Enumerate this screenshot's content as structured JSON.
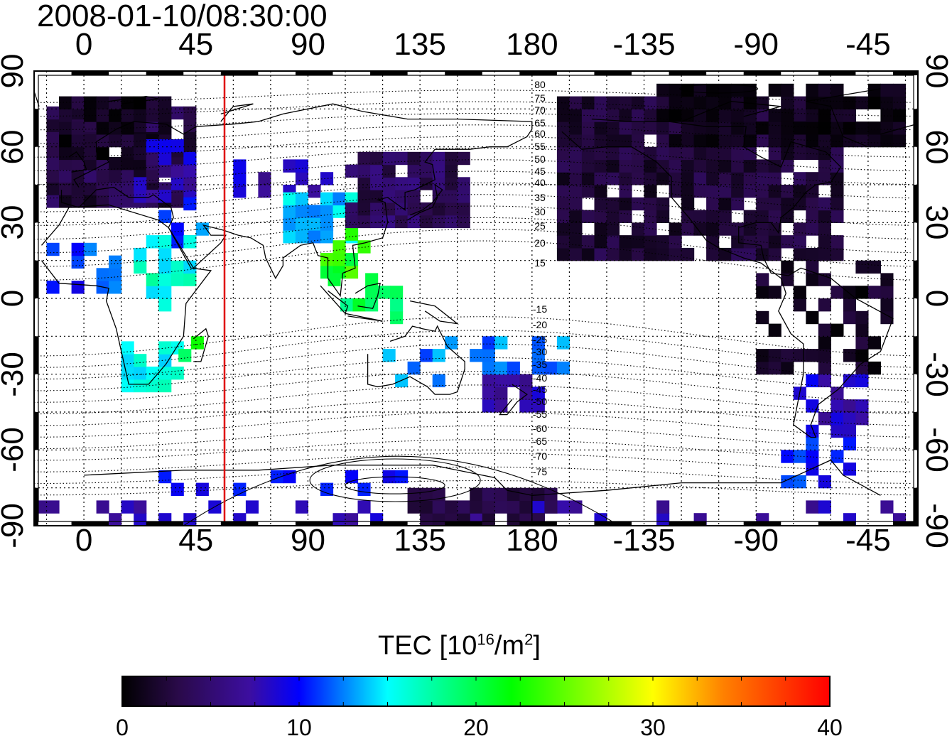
{
  "title": "2008-01-10/08:30:00",
  "map": {
    "lon_ticks_top": [
      "0",
      "45",
      "90",
      "135",
      "180",
      "-135",
      "-90",
      "-45"
    ],
    "lon_ticks_bottom": [
      "0",
      "45",
      "90",
      "135",
      "180",
      "-135",
      "-90",
      "-45"
    ],
    "lat_ticks_left": [
      "90",
      "60",
      "30",
      "0",
      "-30",
      "-60",
      "-90"
    ],
    "lat_ticks_right": [
      "90",
      "60",
      "30",
      "0",
      "-30",
      "-60",
      "-90"
    ],
    "lon_range_east": [
      -20,
      335
    ],
    "lat_range": [
      -90,
      90
    ],
    "grid": "dotted",
    "marker_line_longitude": 52,
    "marker_line_color": "#e00000",
    "magnetic_contour_labels_north": [
      "80",
      "75",
      "70",
      "65",
      "60",
      "55",
      "50",
      "45",
      "40",
      "35",
      "30",
      "25",
      "20",
      "15"
    ],
    "magnetic_contour_labels_south": [
      "-15",
      "-20",
      "-25",
      "-30",
      "-35",
      "-40",
      "-45",
      "-50",
      "-55",
      "-60",
      "-65",
      "-70",
      "-75"
    ]
  },
  "colorbar": {
    "title_prefix": "TEC  [10",
    "title_sup1": "16",
    "title_mid": "/m",
    "title_sup2": "2",
    "title_suffix": "]",
    "min": 0,
    "max": 40,
    "ticks": [
      "0",
      "10",
      "20",
      "30",
      "40"
    ],
    "colors": [
      "#000000",
      "#2a0a4a",
      "#3c0ea0",
      "#0000ff",
      "#00ffff",
      "#00ff00",
      "#ffff00",
      "#ff8000",
      "#ff0000"
    ]
  }
}
